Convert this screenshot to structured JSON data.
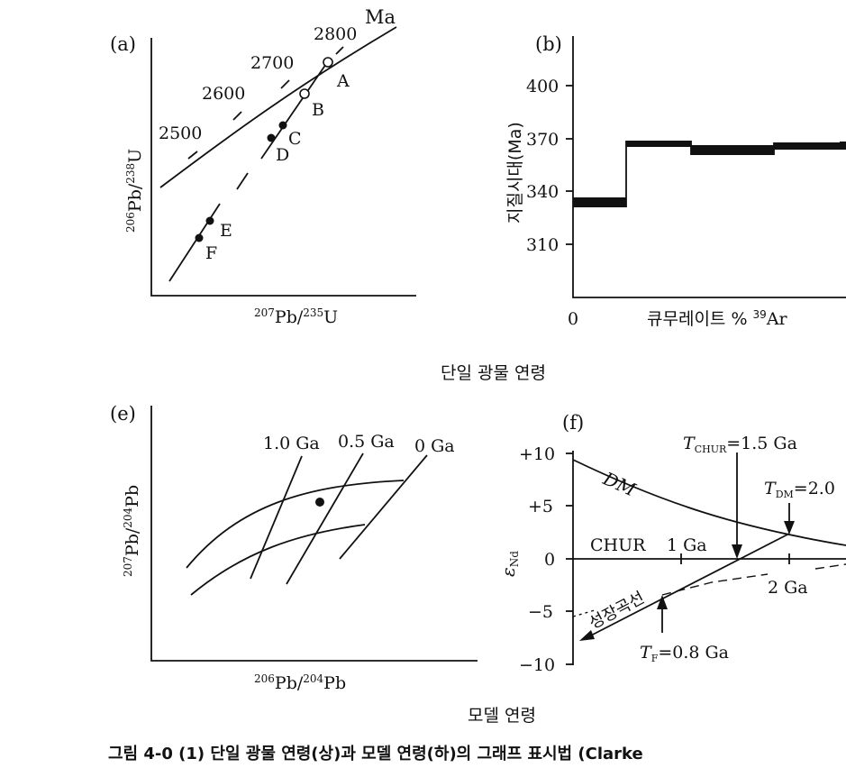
{
  "panel_a": {
    "label": "(a)",
    "unit": "Ma",
    "ticks": [
      "2500",
      "2600",
      "2700",
      "2800"
    ],
    "points": [
      "A",
      "B",
      "C",
      "D",
      "E",
      "F"
    ],
    "xlabel": "207Pb/235U",
    "ylabel": "206Pb/238U"
  },
  "panel_b": {
    "label": "(b)",
    "ylabel": "지질시대(Ma)",
    "yticks": [
      "400",
      "370",
      "340",
      "310"
    ],
    "x0": "0",
    "xlabel": "큐무레이트 % 39Ar"
  },
  "panel_e": {
    "label": "(e)",
    "isochrons": [
      "1.0 Ga",
      "0.5 Ga",
      "0 Ga"
    ],
    "xlabel": "206Pb/204Pb",
    "ylabel": "207Pb/204Pb"
  },
  "panel_f": {
    "label": "(f)",
    "yticks": [
      "+10",
      "+5",
      "0",
      "−5",
      "−10"
    ],
    "ylabel": "εNd",
    "dm": "DM",
    "chur": "CHUR",
    "t1": "1 Ga",
    "t2": "2 Ga",
    "tchur": "TCHUR=1.5 Ga",
    "tdm": "TDM=2.0",
    "tf": "TF=0.8 Ga",
    "growth": "성장곡선"
  },
  "headings": {
    "single_mineral": "단일 광물 연령",
    "model": "모델 연령"
  },
  "caption": "그림 4-0 (1)  단일 광물 연령(상)과 모델 연령(하)의 그래프 표시법 (Clarke"
}
